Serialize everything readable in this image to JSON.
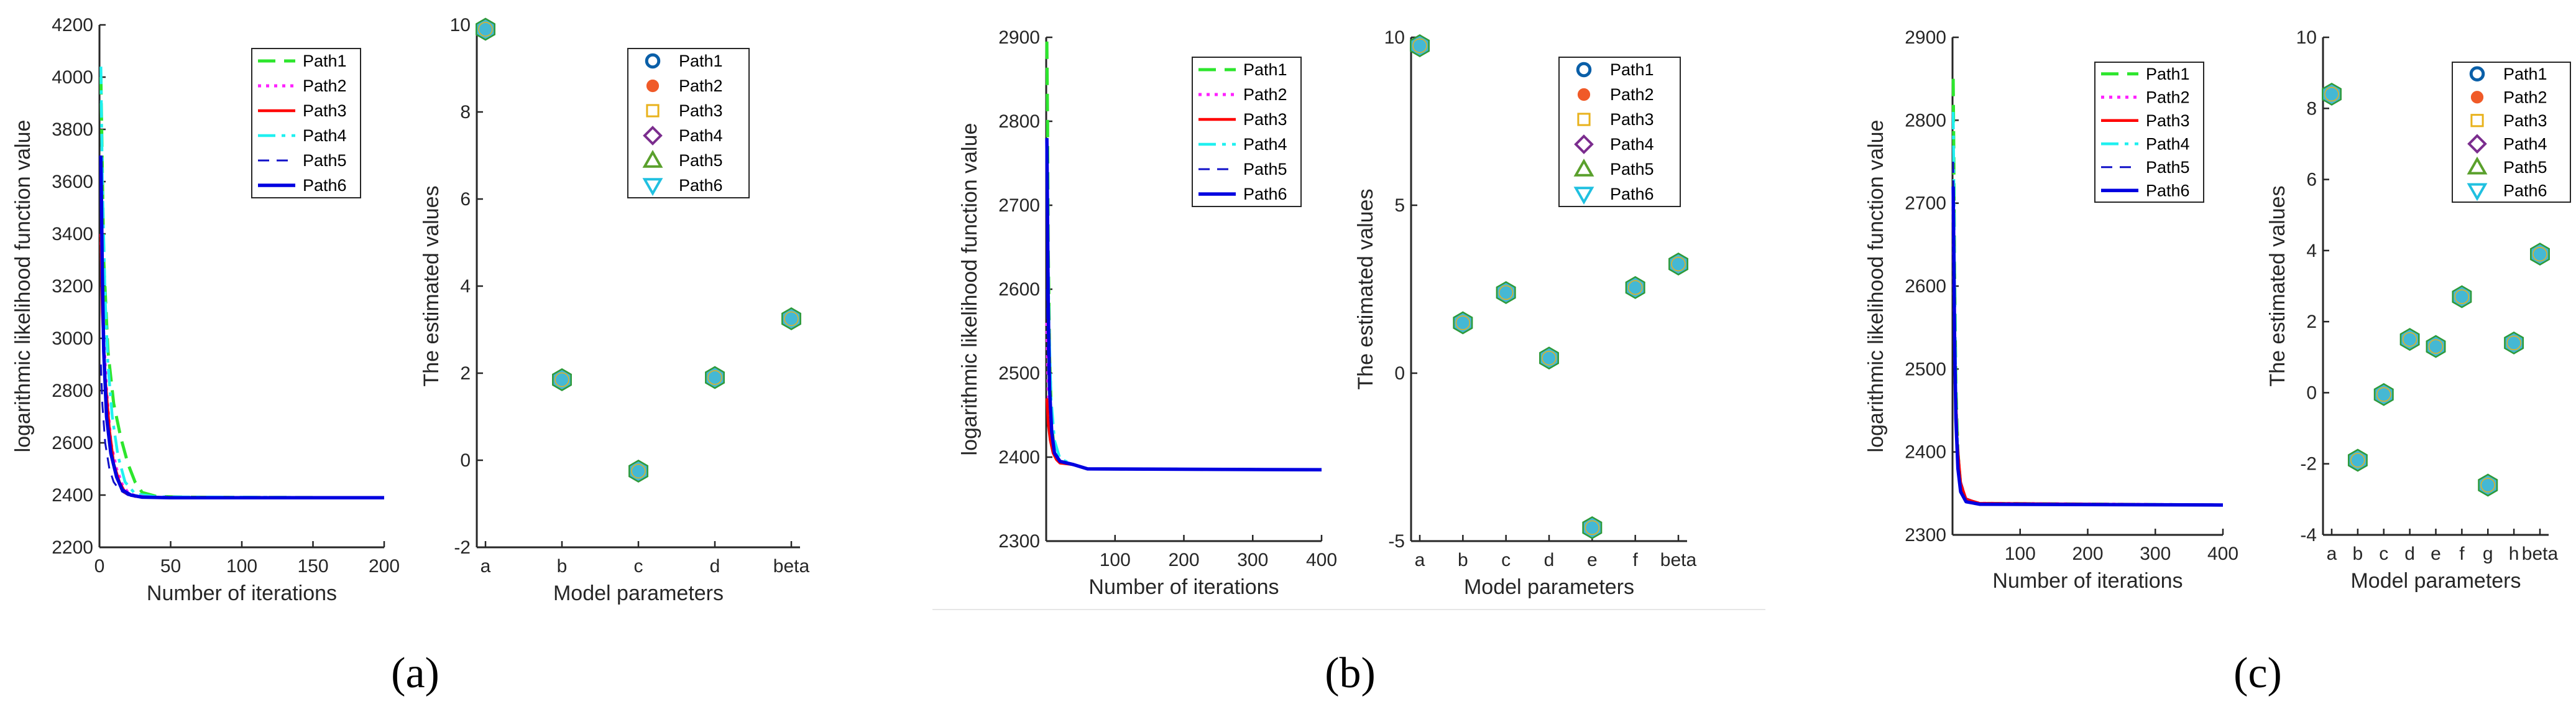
{
  "figure": {
    "panel_labels": [
      "(a)",
      "(b)",
      "(c)"
    ]
  },
  "palette": {
    "Path1": "#2de62d",
    "Path2": "#ff22ff",
    "Path3": "#ff0000",
    "Path4": "#20f0f0",
    "Path5": "#1010c8",
    "Path6": "#0000e0",
    "marker_fill": "#45b8d4",
    "marker_edge": "#2e9a3a"
  },
  "chart_data": [
    {
      "id": "a-left",
      "type": "line",
      "xlabel": "Number of iterations",
      "ylabel": "logarithmic likelihood function value",
      "xlim": [
        0,
        200
      ],
      "ylim": [
        2200,
        4200
      ],
      "xticks": [
        0,
        50,
        100,
        150,
        200
      ],
      "xtick_labels": [
        "0",
        "50",
        "100",
        "150",
        "200"
      ],
      "yticks": [
        2200,
        2400,
        2600,
        2800,
        3000,
        3200,
        3400,
        3600,
        3800,
        4000,
        4200
      ],
      "ytick_labels": [
        "2200",
        "2400",
        "2600",
        "2800",
        "3000",
        "3200",
        "3400",
        "3600",
        "3800",
        "4000",
        "4200"
      ],
      "legend": [
        "Path1",
        "Path2",
        "Path3",
        "Path4",
        "Path5",
        "Path6"
      ],
      "series": [
        {
          "name": "Path1",
          "x": [
            1,
            3,
            6,
            10,
            15,
            20,
            25,
            30,
            40,
            60,
            200
          ],
          "y": [
            4000,
            3300,
            2950,
            2750,
            2620,
            2520,
            2450,
            2410,
            2395,
            2392,
            2390
          ]
        },
        {
          "name": "Path2",
          "x": [
            1,
            3,
            5,
            8,
            12,
            16,
            20,
            25,
            35,
            60,
            200
          ],
          "y": [
            3400,
            3000,
            2800,
            2600,
            2500,
            2440,
            2410,
            2397,
            2392,
            2390,
            2390
          ]
        },
        {
          "name": "Path3",
          "x": [
            1,
            2,
            4,
            7,
            10,
            14,
            18,
            25,
            40,
            200
          ],
          "y": [
            3400,
            3100,
            2850,
            2650,
            2520,
            2450,
            2410,
            2395,
            2391,
            2390
          ]
        },
        {
          "name": "Path4",
          "x": [
            1,
            2,
            4,
            6,
            9,
            13,
            18,
            25,
            40,
            200
          ],
          "y": [
            4040,
            3600,
            3150,
            2900,
            2700,
            2550,
            2450,
            2405,
            2393,
            2390
          ]
        },
        {
          "name": "Path5",
          "x": [
            1,
            2,
            4,
            7,
            10,
            14,
            20,
            30,
            200
          ],
          "y": [
            2900,
            2750,
            2600,
            2500,
            2450,
            2420,
            2400,
            2392,
            2390
          ]
        },
        {
          "name": "Path6",
          "x": [
            1,
            2,
            3,
            5,
            8,
            12,
            16,
            22,
            30,
            50,
            200
          ],
          "y": [
            3700,
            3250,
            2950,
            2700,
            2560,
            2470,
            2420,
            2400,
            2392,
            2390,
            2390
          ]
        }
      ]
    },
    {
      "id": "a-right",
      "type": "scatter",
      "xlabel": "Model parameters",
      "ylabel": "The estimated values",
      "categories": [
        "a",
        "b",
        "c",
        "d",
        "beta"
      ],
      "values": [
        9.9,
        1.85,
        -0.25,
        1.9,
        3.25
      ],
      "ylim": [
        -2,
        10
      ],
      "yticks": [
        -2,
        0,
        2,
        4,
        6,
        8,
        10
      ],
      "ytick_labels": [
        "-2",
        "0",
        "2",
        "4",
        "6",
        "8",
        "10"
      ],
      "legend": [
        "Path1",
        "Path2",
        "Path3",
        "Path4",
        "Path5",
        "Path6"
      ]
    },
    {
      "id": "b-left",
      "type": "line",
      "xlabel": "Number of iterations",
      "ylabel": "logarithmic likelihood function value",
      "xlim": [
        0,
        400
      ],
      "ylim": [
        2300,
        2900
      ],
      "xticks": [
        100,
        200,
        300,
        400
      ],
      "xtick_labels": [
        "100",
        "200",
        "300",
        "400"
      ],
      "yticks": [
        2300,
        2400,
        2500,
        2600,
        2700,
        2800,
        2900
      ],
      "ytick_labels": [
        "2300",
        "2400",
        "2500",
        "2600",
        "2700",
        "2800",
        "2900"
      ],
      "legend": [
        "Path1",
        "Path2",
        "Path3",
        "Path4",
        "Path5",
        "Path6"
      ],
      "series": [
        {
          "name": "Path1",
          "x": [
            1,
            2,
            3,
            5,
            8,
            12,
            20,
            40,
            60,
            400
          ],
          "y": [
            2895,
            2800,
            2650,
            2520,
            2440,
            2405,
            2395,
            2391,
            2386,
            2385
          ]
        },
        {
          "name": "Path2",
          "x": [
            1,
            3,
            6,
            10,
            15,
            20,
            40,
            60,
            400
          ],
          "y": [
            2560,
            2480,
            2430,
            2408,
            2398,
            2394,
            2391,
            2386,
            2385
          ]
        },
        {
          "name": "Path3",
          "x": [
            1,
            3,
            6,
            10,
            15,
            20,
            40,
            60,
            400
          ],
          "y": [
            2470,
            2440,
            2420,
            2405,
            2397,
            2393,
            2391,
            2386,
            2385
          ]
        },
        {
          "name": "Path4",
          "x": [
            1,
            2,
            4,
            7,
            12,
            20,
            40,
            60,
            400
          ],
          "y": [
            2780,
            2700,
            2560,
            2470,
            2420,
            2398,
            2391,
            2386,
            2385
          ]
        },
        {
          "name": "Path5",
          "x": [
            1,
            3,
            6,
            10,
            20,
            40,
            60,
            400
          ],
          "y": [
            2600,
            2500,
            2440,
            2410,
            2395,
            2391,
            2386,
            2385
          ]
        },
        {
          "name": "Path6",
          "x": [
            1,
            2,
            3,
            5,
            8,
            12,
            20,
            40,
            60,
            400
          ],
          "y": [
            2780,
            2680,
            2580,
            2480,
            2430,
            2405,
            2395,
            2391,
            2386,
            2385
          ]
        }
      ]
    },
    {
      "id": "b-right",
      "type": "scatter",
      "xlabel": "Model parameters",
      "ylabel": "The estimated values",
      "categories": [
        "a",
        "b",
        "c",
        "d",
        "e",
        "f",
        "beta"
      ],
      "values": [
        9.75,
        1.5,
        2.4,
        0.45,
        -4.6,
        2.55,
        3.25
      ],
      "ylim": [
        -5,
        10
      ],
      "yticks": [
        -5,
        0,
        5,
        10
      ],
      "ytick_labels": [
        "-5",
        "0",
        "5",
        "10"
      ],
      "legend": [
        "Path1",
        "Path2",
        "Path3",
        "Path4",
        "Path5",
        "Path6"
      ]
    },
    {
      "id": "c-left",
      "type": "line",
      "xlabel": "Number of iterations",
      "ylabel": "logarithmic likelihood function value",
      "xlim": [
        0,
        400
      ],
      "ylim": [
        2300,
        2900
      ],
      "xticks": [
        100,
        200,
        300,
        400
      ],
      "xtick_labels": [
        "100",
        "200",
        "300",
        "400"
      ],
      "yticks": [
        2300,
        2400,
        2500,
        2600,
        2700,
        2800,
        2900
      ],
      "ytick_labels": [
        "2300",
        "2400",
        "2500",
        "2600",
        "2700",
        "2800",
        "2900"
      ],
      "legend": [
        "Path1",
        "Path2",
        "Path3",
        "Path4",
        "Path5",
        "Path6"
      ],
      "series": [
        {
          "name": "Path1",
          "x": [
            1,
            2,
            3,
            5,
            8,
            12,
            20,
            40,
            400
          ],
          "y": [
            2850,
            2750,
            2620,
            2480,
            2400,
            2360,
            2342,
            2338,
            2336
          ]
        },
        {
          "name": "Path2",
          "x": [
            1,
            2,
            4,
            7,
            12,
            20,
            40,
            400
          ],
          "y": [
            2700,
            2600,
            2480,
            2400,
            2360,
            2342,
            2338,
            2336
          ]
        },
        {
          "name": "Path3",
          "x": [
            1,
            2,
            4,
            7,
            12,
            20,
            40,
            400
          ],
          "y": [
            2720,
            2620,
            2490,
            2410,
            2362,
            2343,
            2338,
            2336
          ]
        },
        {
          "name": "Path4",
          "x": [
            1,
            2,
            3,
            5,
            8,
            12,
            20,
            40,
            400
          ],
          "y": [
            2810,
            2720,
            2600,
            2470,
            2400,
            2360,
            2342,
            2338,
            2336
          ]
        },
        {
          "name": "Path5",
          "x": [
            1,
            2,
            4,
            7,
            12,
            20,
            40,
            400
          ],
          "y": [
            2750,
            2640,
            2500,
            2420,
            2365,
            2344,
            2338,
            2336
          ]
        },
        {
          "name": "Path6",
          "x": [
            1,
            2,
            3,
            5,
            8,
            12,
            20,
            40,
            400
          ],
          "y": [
            2720,
            2630,
            2540,
            2440,
            2380,
            2352,
            2340,
            2337,
            2336
          ]
        }
      ]
    },
    {
      "id": "c-right",
      "type": "scatter",
      "xlabel": "Model parameters",
      "ylabel": "The estimated values",
      "categories": [
        "a",
        "b",
        "c",
        "d",
        "e",
        "f",
        "g",
        "h",
        "beta"
      ],
      "values": [
        8.4,
        -1.9,
        -0.05,
        1.5,
        1.3,
        2.7,
        -2.6,
        1.4,
        3.9
      ],
      "ylim": [
        -4,
        10
      ],
      "yticks": [
        -4,
        -2,
        0,
        2,
        4,
        6,
        8,
        10
      ],
      "ytick_labels": [
        "-4",
        "-2",
        "0",
        "2",
        "4",
        "6",
        "8",
        "10"
      ],
      "legend": [
        "Path1",
        "Path2",
        "Path3",
        "Path4",
        "Path5",
        "Path6"
      ]
    }
  ]
}
